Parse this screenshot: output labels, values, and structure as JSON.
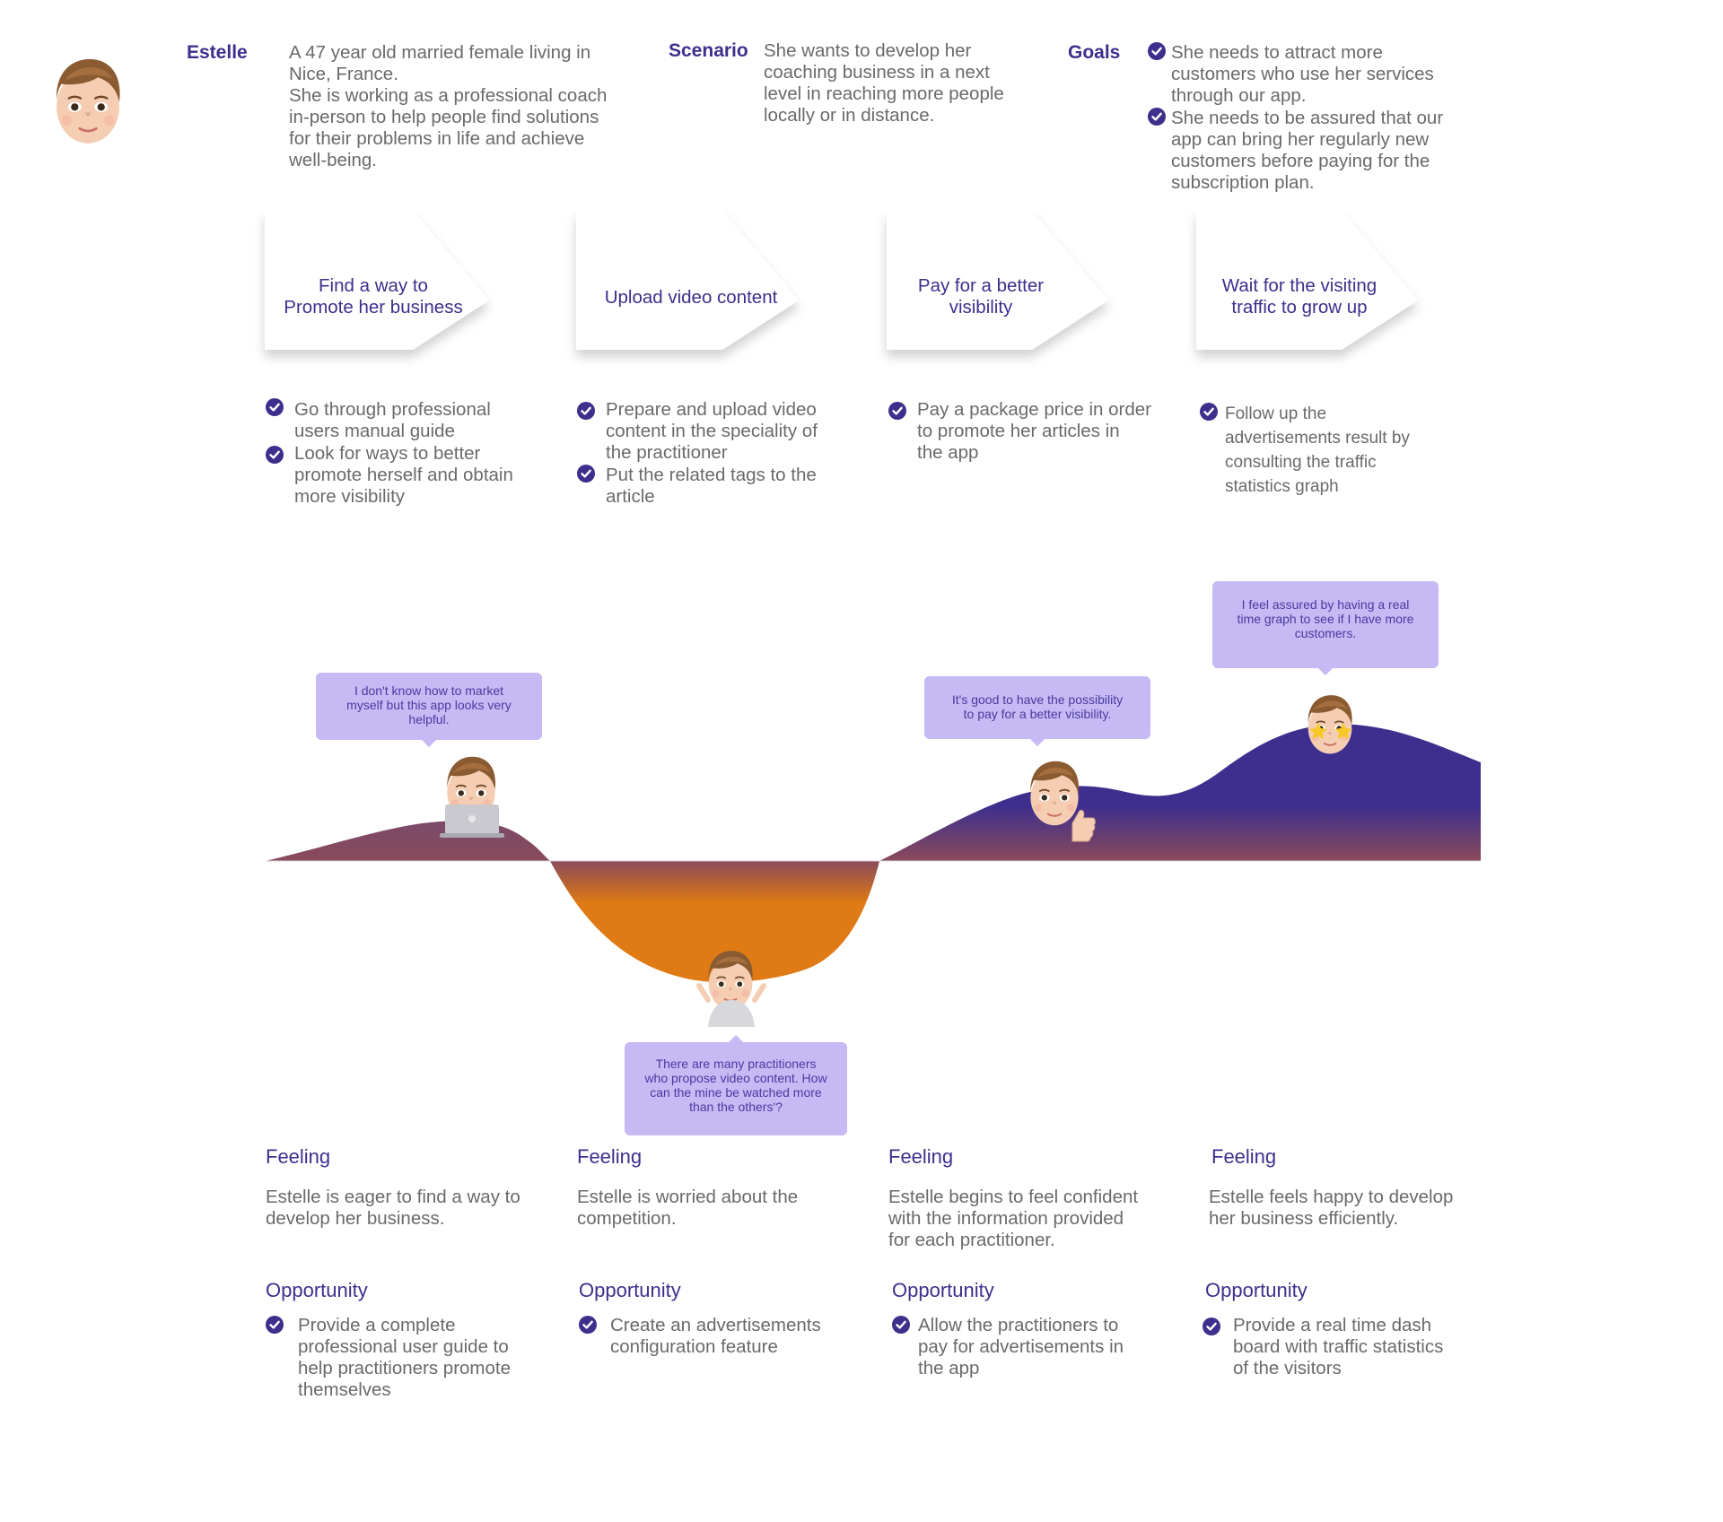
{
  "persona": {
    "name": "Estelle",
    "bio": [
      "A 47 year old married female living in",
      "Nice, France.",
      "She is working as a professional coach",
      "in-person to help people find solutions",
      "for their problems in life and achieve",
      "well-being."
    ],
    "scenario_label": "Scenario",
    "scenario": [
      "She wants to develop her",
      "coaching business in a next",
      "level in reaching more people",
      "locally or in distance."
    ],
    "goals_label": "Goals",
    "goals": [
      [
        "She needs to attract more",
        "customers who use her services",
        "through our app."
      ],
      [
        "She needs to be assured that our",
        "app can bring her regularly new",
        "customers before paying for the",
        "subscription plan."
      ]
    ]
  },
  "steps": [
    {
      "title": [
        "Find a way to",
        "Promote her business"
      ],
      "actions": [
        [
          "Go through professional",
          "users manual guide"
        ],
        [
          "Look for ways to better",
          "promote herself and obtain",
          "more visibility"
        ]
      ]
    },
    {
      "title": [
        "Upload video content"
      ],
      "actions": [
        [
          "Prepare and upload video",
          "content in the speciality of",
          "the practitioner"
        ],
        [
          "Put the related tags to the",
          "article"
        ]
      ]
    },
    {
      "title": [
        "Pay for a better",
        "visibility"
      ],
      "actions": [
        [
          "Pay a package price in order",
          "to promote her articles in",
          "the app"
        ]
      ]
    },
    {
      "title": [
        "Wait for the visiting",
        "traffic to grow up"
      ],
      "actions": [
        [
          "Follow up the",
          "advertisements result by",
          "consulting the traffic",
          "statistics graph"
        ]
      ]
    }
  ],
  "quotes": [
    [
      "I don't know how to market",
      "myself but this app looks very",
      "helpful."
    ],
    [
      "There are many practitioners",
      "who propose video content. How",
      "can the mine be watched more",
      "than the others'?"
    ],
    [
      "It's good to have the possibility",
      "to pay for a better visibility."
    ],
    [
      "I feel assured by having a real",
      "time graph to see if I have more",
      "customers."
    ]
  ],
  "feelings": {
    "label": "Feeling",
    "items": [
      [
        "Estelle is eager to find a way to",
        "develop her business."
      ],
      [
        "Estelle is worried about the",
        "competition."
      ],
      [
        "Estelle begins to feel confident",
        "with the information provided",
        "for each practitioner."
      ],
      [
        "Estelle feels happy to develop",
        "her business efficiently."
      ]
    ]
  },
  "opportunities": {
    "label": "Opportunity",
    "items": [
      [
        "Provide a complete",
        "professional user guide to",
        "help practitioners promote",
        "themselves"
      ],
      [
        "Create an advertisements",
        "configuration feature"
      ],
      [
        "Allow the practitioners to",
        "pay for advertisements in",
        "the app"
      ],
      [
        "Provide a real time dash",
        "board with traffic statistics",
        "of the visitors"
      ]
    ]
  },
  "colors": {
    "primary_purple": "#3f2e8c",
    "bubble": "#c6b9f4",
    "orange": "#e07a14"
  }
}
